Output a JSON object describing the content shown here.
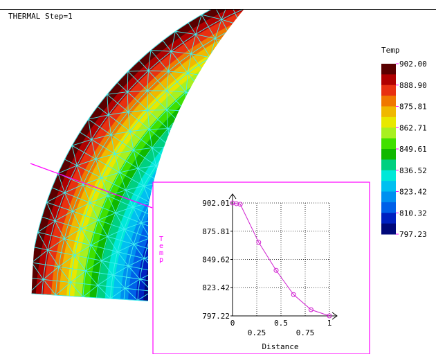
{
  "viewport": {
    "step_label": "THERMAL Step=1"
  },
  "legend": {
    "title": "Temp",
    "values": [
      "902.00",
      "888.90",
      "875.81",
      "862.71",
      "849.61",
      "836.52",
      "823.42",
      "810.32",
      "797.23"
    ],
    "colors": [
      "#5a0000",
      "#b00000",
      "#e83010",
      "#f07800",
      "#f0b800",
      "#e8e800",
      "#a8f020",
      "#40e000",
      "#10b800",
      "#00d080",
      "#00e8d8",
      "#00c0f0",
      "#0090f0",
      "#0060e8",
      "#0020c0",
      "#00087a"
    ]
  },
  "probe_line_color": "#ff00ff",
  "chart_data": {
    "type": "line",
    "title": "",
    "xlabel": "Distance",
    "ylabel": "Temp",
    "x_ticks": [
      "0",
      "0.25",
      "0.5",
      "0.75",
      "1"
    ],
    "y_ticks": [
      "902.01",
      "875.81",
      "849.62",
      "823.42",
      "797.22"
    ],
    "xlim": [
      0,
      1
    ],
    "ylim": [
      797.22,
      902.01
    ],
    "grid": true,
    "series": [
      {
        "x": [
          0,
          0.04,
          0.08,
          0.27,
          0.45,
          0.63,
          0.81,
          1.0
        ],
        "y": [
          902.0,
          901.4,
          900.8,
          865.5,
          839.5,
          817.0,
          803.0,
          797.23
        ]
      }
    ],
    "color": "#d020d0"
  }
}
